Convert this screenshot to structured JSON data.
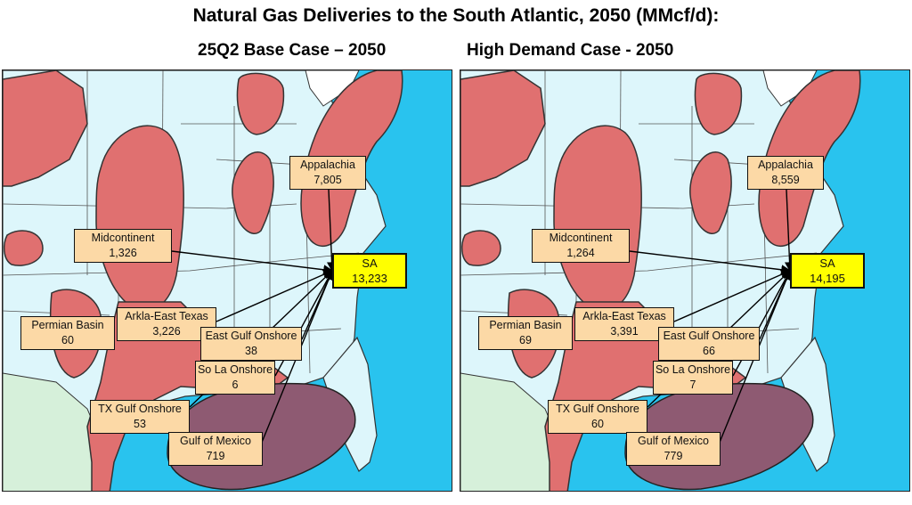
{
  "title": "Natural Gas Deliveries to the South Atlantic, 2050 (MMcf/d):",
  "panels": [
    {
      "subtitle": "25Q2 Base Case – 2050",
      "regions": {
        "appalachia": {
          "name": "Appalachia",
          "value": "7,805"
        },
        "midcontinent": {
          "name": "Midcontinent",
          "value": "1,326"
        },
        "sa": {
          "name": "SA",
          "value": "13,233"
        },
        "permian": {
          "name": "Permian Basin",
          "value": "60"
        },
        "arkla": {
          "name": "Arkla-East Texas",
          "value": "3,226"
        },
        "eastgulf": {
          "name": "East Gulf Onshore",
          "value": "38"
        },
        "sola": {
          "name": "So La Onshore",
          "value": "6"
        },
        "txgulf": {
          "name": "TX Gulf Onshore",
          "value": "53"
        },
        "gom": {
          "name": "Gulf of Mexico",
          "value": "719"
        }
      }
    },
    {
      "subtitle": "High Demand Case - 2050",
      "regions": {
        "appalachia": {
          "name": "Appalachia",
          "value": "8,559"
        },
        "midcontinent": {
          "name": "Midcontinent",
          "value": "1,264"
        },
        "sa": {
          "name": "SA",
          "value": "14,195"
        },
        "permian": {
          "name": "Permian Basin",
          "value": "69"
        },
        "arkla": {
          "name": "Arkla-East Texas",
          "value": "3,391"
        },
        "eastgulf": {
          "name": "East Gulf Onshore",
          "value": "66"
        },
        "sola": {
          "name": "So La Onshore",
          "value": "7"
        },
        "txgulf": {
          "name": "TX Gulf Onshore",
          "value": "60"
        },
        "gom": {
          "name": "Gulf of Mexico",
          "value": "779"
        }
      }
    }
  ],
  "colors": {
    "ocean": "#29c3ee",
    "land": "#ddf6fb",
    "gas_basin": "#e07070",
    "offshore_basin": "#8e5a72",
    "mexico_land": "#d6f0da",
    "label_box": "#fcd9a6",
    "sa_box": "#ffff00"
  }
}
